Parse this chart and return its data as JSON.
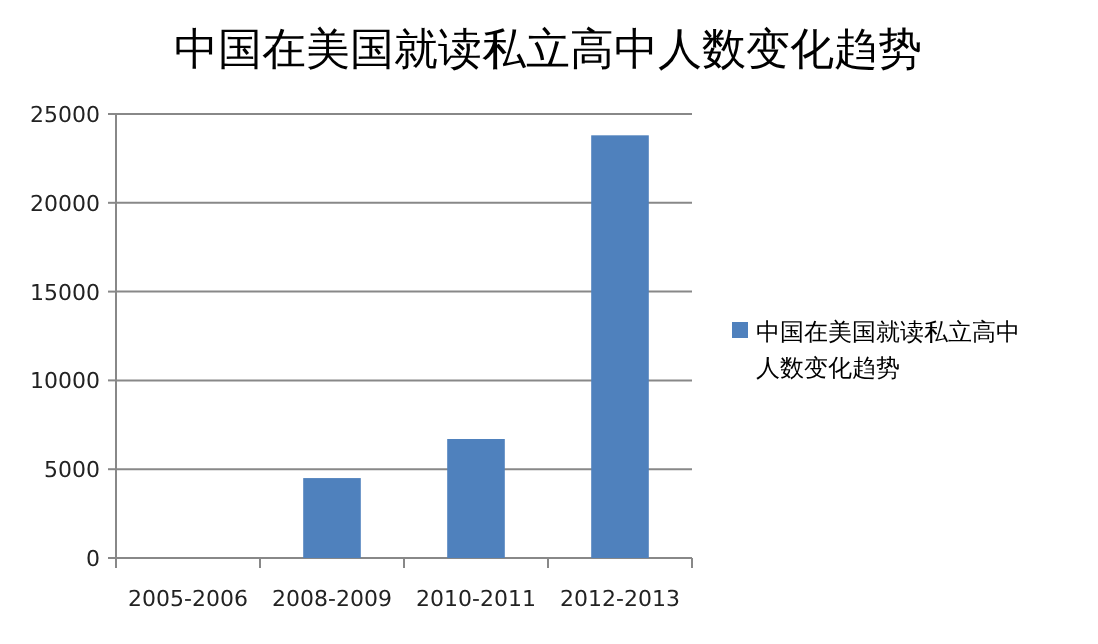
{
  "chart_data": {
    "type": "bar",
    "title": "中国在美国就读私立高中人数变化趋势",
    "categories": [
      "2005-2006",
      "2008-2009",
      "2010-2011",
      "2012-2013"
    ],
    "series": [
      {
        "name": "中国在美国就读私立高中人数变化趋势",
        "color": "#4f81bd",
        "values": [
          0,
          4500,
          6700,
          23800
        ]
      }
    ],
    "ylim": [
      0,
      25000
    ],
    "yticks": [
      0,
      5000,
      10000,
      15000,
      20000,
      25000
    ],
    "grid": "y",
    "legend": "right"
  }
}
